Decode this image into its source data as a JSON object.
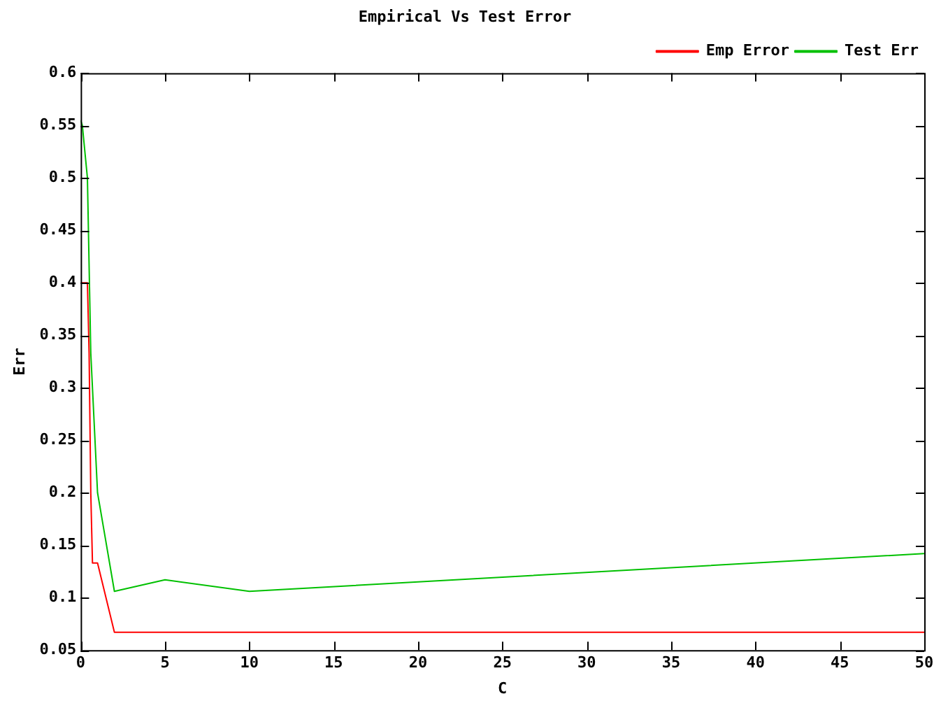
{
  "chart_data": {
    "type": "line",
    "title": "Empirical Vs Test Error",
    "xlabel": "C",
    "ylabel": "Err",
    "xlim": [
      0,
      50
    ],
    "xticks": [
      0,
      5,
      10,
      15,
      20,
      25,
      30,
      35,
      40,
      45,
      50
    ],
    "ylim": [
      0.05,
      0.6
    ],
    "yticks": [
      0.05,
      0.1,
      0.15,
      0.2,
      0.25,
      0.3,
      0.35,
      0.4,
      0.45,
      0.5,
      0.55,
      0.6
    ],
    "legend": "top right",
    "grid": false,
    "marker": "none",
    "line_style": "solid",
    "series": [
      {
        "name": "Emp Error",
        "color": "#ff0000",
        "x": [
          0,
          0.4,
          0.5,
          0.6,
          0.7,
          1,
          2,
          50
        ],
        "values": [
          0.4,
          0.4,
          0.333,
          0.2,
          0.133,
          0.133,
          0.067,
          0.067
        ]
      },
      {
        "name": "Test Err",
        "color": "#00c000",
        "x": [
          0,
          0.1,
          0.4,
          0.6,
          1,
          2,
          5,
          10,
          50
        ],
        "values": [
          0.555,
          0.55,
          0.5,
          0.333,
          0.2,
          0.106,
          0.117,
          0.106,
          0.142
        ]
      }
    ]
  }
}
